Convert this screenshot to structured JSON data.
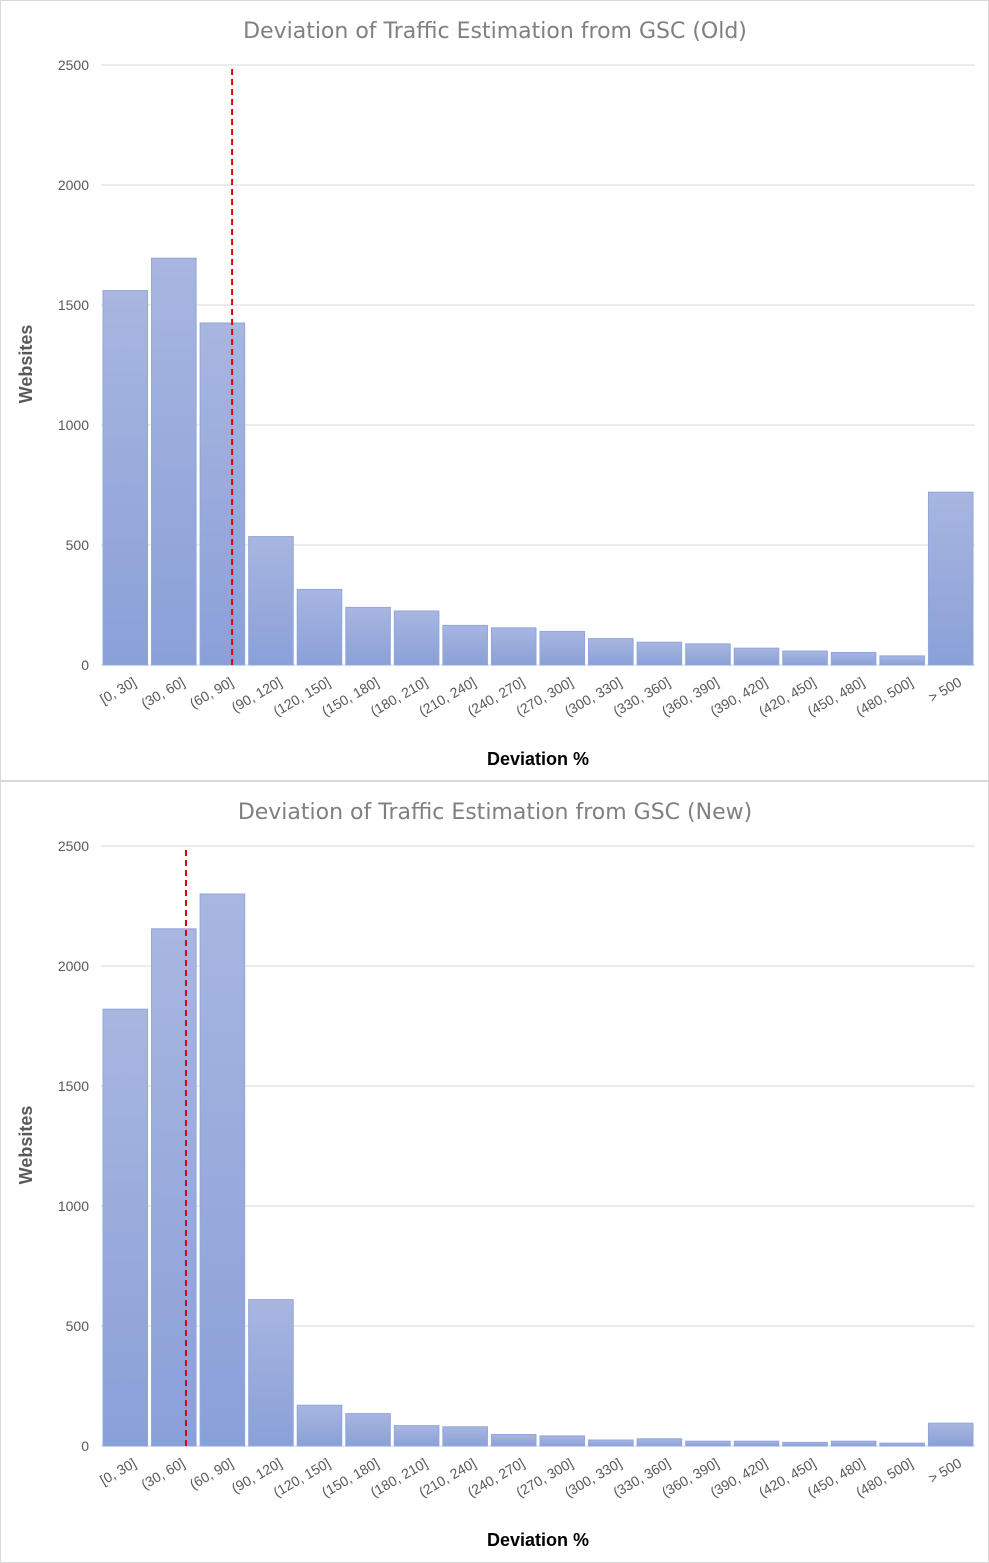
{
  "colors": {
    "bar_top": "#a8b6e0",
    "bar_bottom": "#8aa0d8",
    "reference_line": "#e00000",
    "gridline": "#d9d9d9",
    "title_text": "#808080"
  },
  "chart_data": [
    {
      "type": "bar",
      "title": "Deviation of Traffic Estimation from GSC (Old)",
      "xlabel": "Deviation %",
      "ylabel": "Websites",
      "ylim": [
        0,
        2500
      ],
      "yticks": [
        0,
        500,
        1000,
        1500,
        2000,
        2500
      ],
      "grid": true,
      "legend": "none",
      "categories": [
        "[0, 30]",
        "(30, 60]",
        "(60, 90]",
        "(90, 120]",
        "(120, 150]",
        "(150, 180]",
        "(180, 210]",
        "(210, 240]",
        "(240, 270]",
        "(270, 300]",
        "(300, 330]",
        "(330, 360]",
        "(360, 390]",
        "(390, 420]",
        "(420, 450]",
        "(450, 480]",
        "(480, 500]",
        "> 500"
      ],
      "values": [
        1560,
        1695,
        1425,
        535,
        315,
        240,
        225,
        165,
        155,
        140,
        110,
        95,
        88,
        70,
        58,
        52,
        38,
        720
      ],
      "reference_line": {
        "category_index": 2,
        "offset": 0.7
      }
    },
    {
      "type": "bar",
      "title": "Deviation of Traffic Estimation from GSC (New)",
      "xlabel": "Deviation %",
      "ylabel": "Websites",
      "ylim": [
        0,
        2500
      ],
      "yticks": [
        0,
        500,
        1000,
        1500,
        2000,
        2500
      ],
      "grid": true,
      "legend": "none",
      "categories": [
        "[0, 30]",
        "(30, 60]",
        "(60, 90]",
        "(90, 120]",
        "(120, 150]",
        "(150, 180]",
        "(180, 210]",
        "(210, 240]",
        "(240, 270]",
        "(270, 300]",
        "(300, 330]",
        "(330, 360]",
        "(360, 390]",
        "(390, 420]",
        "(420, 450]",
        "(450, 480]",
        "(480, 500]",
        "> 500"
      ],
      "values": [
        1820,
        2155,
        2300,
        610,
        170,
        135,
        85,
        80,
        48,
        42,
        25,
        30,
        20,
        20,
        15,
        20,
        12,
        95
      ],
      "reference_line": {
        "category_index": 1,
        "offset": 0.75
      }
    }
  ]
}
